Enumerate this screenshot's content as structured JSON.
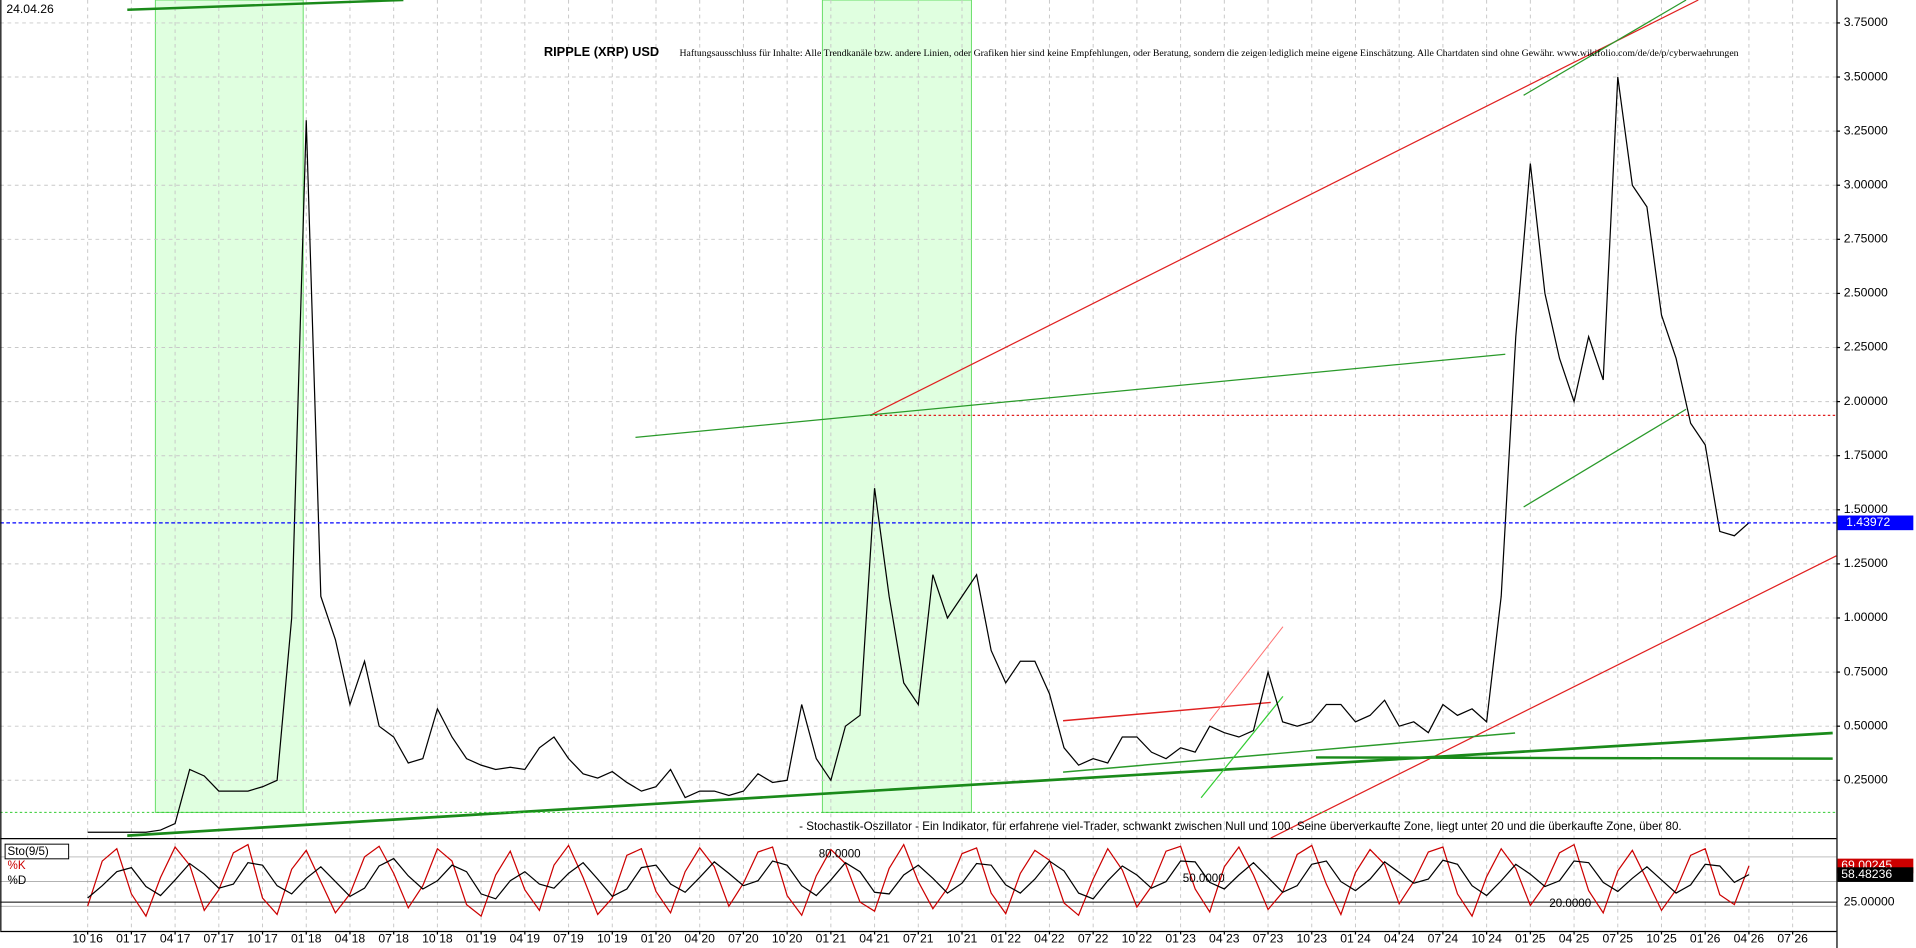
{
  "date": "24.04.26",
  "chart_data": [
    {
      "type": "line",
      "title": "RIPPLE (XRP) USD",
      "subtitle": "Haftungsausschluss für Inhalte: Alle Trendkanäle bzw. andere Linien, oder Grafiken hier sind keine Empfehlungen, oder Beratung, sondern die zeigen lediglich meine eigene Einschätzung. Alle Chartdaten sind ohne Gewähr. www.wikifolio.com/de/de/p/cyberwaehrungen",
      "x": [
        "2016-10",
        "2016-11",
        "2016-12",
        "2017-01",
        "2017-02",
        "2017-03",
        "2017-04",
        "2017-05",
        "2017-06",
        "2017-07",
        "2017-08",
        "2017-09",
        "2017-10",
        "2017-11",
        "2017-12",
        "2018-01",
        "2018-02",
        "2018-03",
        "2018-04",
        "2018-05",
        "2018-06",
        "2018-07",
        "2018-08",
        "2018-09",
        "2018-10",
        "2018-11",
        "2018-12",
        "2019-01",
        "2019-02",
        "2019-03",
        "2019-04",
        "2019-05",
        "2019-06",
        "2019-07",
        "2019-08",
        "2019-09",
        "2019-10",
        "2019-11",
        "2019-12",
        "2020-01",
        "2020-02",
        "2020-03",
        "2020-04",
        "2020-05",
        "2020-06",
        "2020-07",
        "2020-08",
        "2020-09",
        "2020-10",
        "2020-11",
        "2020-12",
        "2021-01",
        "2021-02",
        "2021-03",
        "2021-04",
        "2021-05",
        "2021-06",
        "2021-07",
        "2021-08",
        "2021-09",
        "2021-10",
        "2021-11",
        "2021-12",
        "2022-01",
        "2022-02",
        "2022-03",
        "2022-04",
        "2022-05",
        "2022-06",
        "2022-07",
        "2022-08",
        "2022-09",
        "2022-10",
        "2022-11",
        "2022-12",
        "2023-01",
        "2023-02",
        "2023-03",
        "2023-04",
        "2023-05",
        "2023-06",
        "2023-07",
        "2023-08",
        "2023-09",
        "2023-10",
        "2023-11",
        "2023-12",
        "2024-01",
        "2024-02",
        "2024-03",
        "2024-04",
        "2024-05",
        "2024-06",
        "2024-07",
        "2024-08",
        "2024-09",
        "2024-10",
        "2024-11",
        "2024-12",
        "2025-01",
        "2025-02",
        "2025-03",
        "2025-04",
        "2025-05",
        "2025-06",
        "2025-07",
        "2025-08",
        "2025-09",
        "2025-10",
        "2025-11",
        "2025-12",
        "2026-01",
        "2026-02",
        "2026-03",
        "2026-04"
      ],
      "values": [
        0.01,
        0.01,
        0.01,
        0.01,
        0.01,
        0.02,
        0.05,
        0.3,
        0.27,
        0.2,
        0.2,
        0.2,
        0.22,
        0.25,
        1.0,
        3.3,
        1.1,
        0.9,
        0.6,
        0.8,
        0.5,
        0.45,
        0.33,
        0.35,
        0.58,
        0.45,
        0.35,
        0.32,
        0.3,
        0.31,
        0.3,
        0.4,
        0.45,
        0.35,
        0.28,
        0.26,
        0.29,
        0.24,
        0.2,
        0.22,
        0.3,
        0.17,
        0.2,
        0.2,
        0.18,
        0.2,
        0.28,
        0.24,
        0.25,
        0.6,
        0.35,
        0.25,
        0.5,
        0.55,
        1.6,
        1.1,
        0.7,
        0.6,
        1.2,
        1.0,
        1.1,
        1.2,
        0.85,
        0.7,
        0.8,
        0.8,
        0.65,
        0.4,
        0.32,
        0.35,
        0.33,
        0.45,
        0.45,
        0.38,
        0.35,
        0.4,
        0.38,
        0.5,
        0.47,
        0.45,
        0.48,
        0.75,
        0.52,
        0.5,
        0.52,
        0.6,
        0.6,
        0.52,
        0.55,
        0.62,
        0.5,
        0.52,
        0.47,
        0.6,
        0.55,
        0.58,
        0.52,
        1.1,
        2.3,
        3.1,
        2.5,
        2.2,
        2.0,
        2.3,
        2.1,
        3.5,
        3.0,
        2.9,
        2.4,
        2.2,
        1.9,
        1.8,
        1.4,
        1.38,
        1.43972
      ],
      "color": "#000000",
      "last_color": "#0000ff",
      "xlim": [
        "2016-04",
        "2026-10"
      ],
      "xticks": [
        {
          "value": "2016-10",
          "label": "10 16"
        },
        {
          "value": "2017-01",
          "label": "01 17"
        },
        {
          "value": "2017-04",
          "label": "04 17"
        },
        {
          "value": "2017-07",
          "label": "07 17"
        },
        {
          "value": "2017-10",
          "label": "10 17"
        },
        {
          "value": "2018-01",
          "label": "01 18"
        },
        {
          "value": "2018-04",
          "label": "04 18"
        },
        {
          "value": "2018-07",
          "label": "07 18"
        },
        {
          "value": "2018-10",
          "label": "10 18"
        },
        {
          "value": "2019-01",
          "label": "01 19"
        },
        {
          "value": "2019-04",
          "label": "04 19"
        },
        {
          "value": "2019-07",
          "label": "07 19"
        },
        {
          "value": "2019-10",
          "label": "10 19"
        },
        {
          "value": "2020-01",
          "label": "01 20"
        },
        {
          "value": "2020-04",
          "label": "04 20"
        },
        {
          "value": "2020-07",
          "label": "07 20"
        },
        {
          "value": "2020-10",
          "label": "10 20"
        },
        {
          "value": "2021-01",
          "label": "01 21"
        },
        {
          "value": "2021-04",
          "label": "04 21"
        },
        {
          "value": "2021-07",
          "label": "07 21"
        },
        {
          "value": "2021-10",
          "label": "10 21"
        },
        {
          "value": "2022-01",
          "label": "01 22"
        },
        {
          "value": "2022-04",
          "label": "04 22"
        },
        {
          "value": "2022-07",
          "label": "07 22"
        },
        {
          "value": "2022-10",
          "label": "10 22"
        },
        {
          "value": "2023-01",
          "label": "01 23"
        },
        {
          "value": "2023-04",
          "label": "04 23"
        },
        {
          "value": "2023-07",
          "label": "07 23"
        },
        {
          "value": "2023-10",
          "label": "10 23"
        },
        {
          "value": "2024-01",
          "label": "01 24"
        },
        {
          "value": "2024-04",
          "label": "04 24"
        },
        {
          "value": "2024-07",
          "label": "07 24"
        },
        {
          "value": "2024-10",
          "label": "10 24"
        },
        {
          "value": "2025-01",
          "label": "01 25"
        },
        {
          "value": "2025-04",
          "label": "04 25"
        },
        {
          "value": "2025-07",
          "label": "07 25"
        },
        {
          "value": "2025-10",
          "label": "10 25"
        },
        {
          "value": "2026-01",
          "label": "01 26"
        },
        {
          "value": "2026-04",
          "label": "04 26"
        },
        {
          "value": "2026-07",
          "label": "07 26"
        }
      ],
      "ylim": [
        -0.017,
        3.856
      ],
      "yticks": [
        {
          "value": 0.25,
          "label": "0.25000"
        },
        {
          "value": 0.5,
          "label": "0.50000"
        },
        {
          "value": 0.75,
          "label": "0.75000"
        },
        {
          "value": 1.0,
          "label": "1.00000"
        },
        {
          "value": 1.25,
          "label": "1.25000"
        },
        {
          "value": 1.5,
          "label": "1.50000"
        },
        {
          "value": 1.75,
          "label": "1.75000"
        },
        {
          "value": 2.0,
          "label": "2.00000"
        },
        {
          "value": 2.25,
          "label": "2.25000"
        },
        {
          "value": 2.5,
          "label": "2.50000"
        },
        {
          "value": 2.75,
          "label": "2.75000"
        },
        {
          "value": 3.0,
          "label": "3.00000"
        },
        {
          "value": 3.25,
          "label": "3.25000"
        },
        {
          "value": 3.5,
          "label": "3.50000"
        },
        {
          "value": 3.75,
          "label": "3.75000"
        }
      ],
      "grid": true
    },
    {
      "type": "line",
      "title": "Sto(9/5)",
      "subtitle": "- Stochastik-Oszillator - Ein Indikator, für erfahrene viel-Trader, schwankt zwischen Null und 100. Seine überverkaufte Zone, liegt unter 20 und die überkaufte Zone, über 80.",
      "x": [
        "2016-10",
        "2016-11",
        "2016-12",
        "2017-01",
        "2017-02",
        "2017-03",
        "2017-04",
        "2017-05",
        "2017-06",
        "2017-07",
        "2017-08",
        "2017-09",
        "2017-10",
        "2017-11",
        "2017-12",
        "2018-01",
        "2018-02",
        "2018-03",
        "2018-04",
        "2018-05",
        "2018-06",
        "2018-07",
        "2018-08",
        "2018-09",
        "2018-10",
        "2018-11",
        "2018-12",
        "2019-01",
        "2019-02",
        "2019-03",
        "2019-04",
        "2019-05",
        "2019-06",
        "2019-07",
        "2019-08",
        "2019-09",
        "2019-10",
        "2019-11",
        "2019-12",
        "2020-01",
        "2020-02",
        "2020-03",
        "2020-04",
        "2020-05",
        "2020-06",
        "2020-07",
        "2020-08",
        "2020-09",
        "2020-10",
        "2020-11",
        "2020-12",
        "2021-01",
        "2021-02",
        "2021-03",
        "2021-04",
        "2021-05",
        "2021-06",
        "2021-07",
        "2021-08",
        "2021-09",
        "2021-10",
        "2021-11",
        "2021-12",
        "2022-01",
        "2022-02",
        "2022-03",
        "2022-04",
        "2022-05",
        "2022-06",
        "2022-07",
        "2022-08",
        "2022-09",
        "2022-10",
        "2022-11",
        "2022-12",
        "2023-01",
        "2023-02",
        "2023-03",
        "2023-04",
        "2023-05",
        "2023-06",
        "2023-07",
        "2023-08",
        "2023-09",
        "2023-10",
        "2023-11",
        "2023-12",
        "2024-01",
        "2024-02",
        "2024-03",
        "2024-04",
        "2024-05",
        "2024-06",
        "2024-07",
        "2024-08",
        "2024-09",
        "2024-10",
        "2024-11",
        "2024-12",
        "2025-01",
        "2025-02",
        "2025-03",
        "2025-04",
        "2025-05",
        "2025-06",
        "2025-07",
        "2025-08",
        "2025-09",
        "2025-10",
        "2025-11",
        "2025-12",
        "2026-01",
        "2026-02",
        "2026-03",
        "2026-04"
      ],
      "series": [
        {
          "name": "%K",
          "color": "#cc0000",
          "values": [
            20,
            75,
            90,
            35,
            8,
            55,
            92,
            70,
            15,
            40,
            85,
            95,
            30,
            10,
            65,
            88,
            50,
            12,
            35,
            80,
            93,
            60,
            18,
            45,
            90,
            75,
            22,
            8,
            58,
            87,
            40,
            15,
            70,
            94,
            55,
            10,
            30,
            82,
            90,
            38,
            12,
            62,
            91,
            68,
            20,
            48,
            86,
            92,
            33,
            9,
            57,
            89,
            72,
            25,
            14,
            66,
            95,
            50,
            17,
            42,
            84,
            91,
            36,
            11,
            60,
            88,
            76,
            24,
            9,
            53,
            90,
            64,
            19,
            44,
            87,
            93,
            41,
            13,
            68,
            92,
            58,
            16,
            37,
            83,
            94,
            47,
            10,
            61,
            89,
            71,
            23,
            50,
            86,
            92,
            35,
            8,
            56,
            90,
            66,
            21,
            46,
            85,
            95,
            39,
            12,
            63,
            88,
            52,
            15,
            40,
            82,
            90,
            34,
            22,
            69.00245
          ]
        },
        {
          "name": "%D",
          "color": "#000000",
          "values": [
            30,
            45,
            62,
            67,
            44,
            33,
            52,
            72,
            59,
            42,
            47,
            73,
            70,
            45,
            35,
            54,
            68,
            50,
            32,
            42,
            69,
            78,
            57,
            41,
            51,
            70,
            62,
            35,
            29,
            51,
            62,
            47,
            42,
            60,
            73,
            53,
            32,
            41,
            67,
            70,
            47,
            37,
            55,
            74,
            60,
            45,
            51,
            75,
            70,
            45,
            33,
            52,
            73,
            62,
            37,
            35,
            58,
            70,
            54,
            36,
            48,
            72,
            70,
            46,
            36,
            53,
            75,
            63,
            36,
            29,
            51,
            69,
            58,
            42,
            50,
            75,
            74,
            49,
            41,
            58,
            73,
            55,
            37,
            45,
            71,
            75,
            50,
            39,
            53,
            74,
            61,
            48,
            53,
            76,
            71,
            45,
            33,
            51,
            71,
            59,
            44,
            51,
            75,
            73,
            49,
            38,
            54,
            68,
            52,
            36,
            46,
            71,
            69,
            49,
            58.48236
          ]
        }
      ],
      "levels": [
        {
          "value": 80,
          "label": "80.0000"
        },
        {
          "value": 50,
          "label": "50.0000"
        },
        {
          "value": 20,
          "label": "20.0000"
        }
      ],
      "ylim": [
        -10,
        100
      ],
      "yticks": [
        {
          "value": 25,
          "label": "25.00000"
        }
      ]
    }
  ]
}
